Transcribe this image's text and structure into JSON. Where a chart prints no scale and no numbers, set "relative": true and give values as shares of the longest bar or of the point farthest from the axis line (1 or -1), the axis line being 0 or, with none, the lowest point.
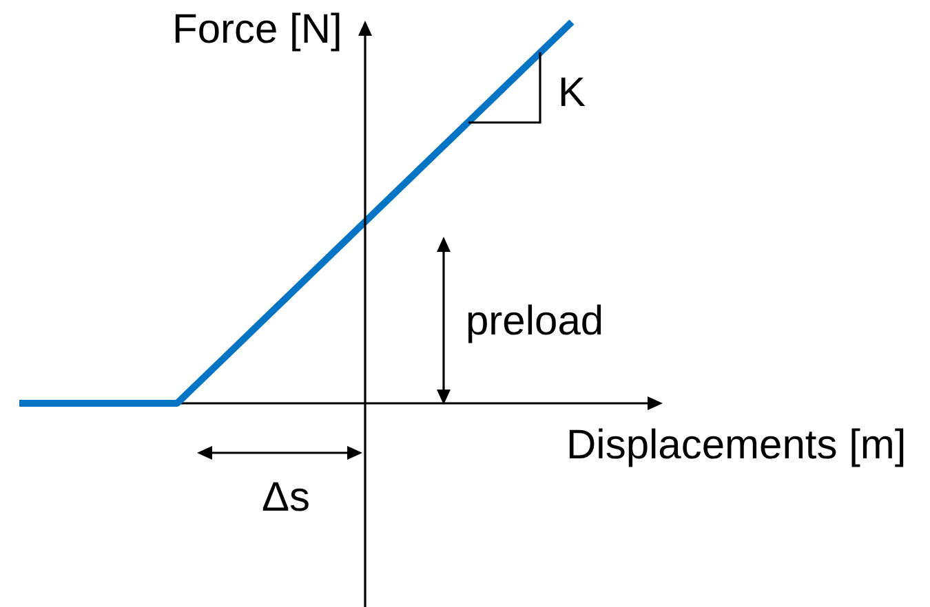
{
  "chart_data": {
    "type": "line",
    "xlabel": "Displacements [m]",
    "ylabel": "Force [N]",
    "categories": [
      null,
      null,
      null,
      null,
      null,
      null,
      null,
      null
    ],
    "values": [
      0,
      0,
      0,
      0.2,
      0.4,
      0.6,
      0.8,
      1
    ],
    "color": "#0574c4",
    "relative": true,
    "tick_labels": false,
    "annotations": [
      "K",
      "preload",
      "Δs"
    ]
  }
}
